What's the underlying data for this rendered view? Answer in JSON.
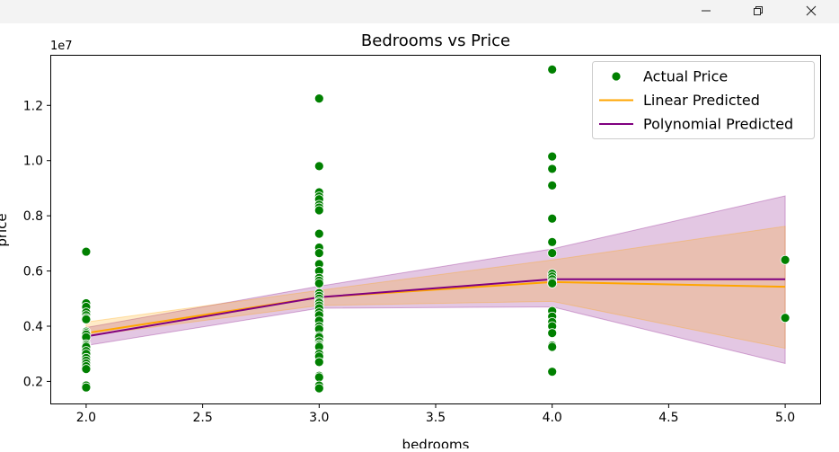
{
  "window": {
    "icons": {
      "minimize": "minimize-icon",
      "maximize": "restore-icon",
      "close": "close-icon"
    }
  },
  "chart_data": {
    "type": "scatter",
    "title": "Bedrooms vs Price",
    "xlabel": "bedrooms",
    "ylabel": "price",
    "y_offset_label": "1e7",
    "xlim": [
      1.85,
      5.15
    ],
    "ylim": [
      0.12,
      1.38
    ],
    "x_ticks": [
      2.0,
      2.5,
      3.0,
      3.5,
      4.0,
      4.5,
      5.0
    ],
    "x_tick_labels": [
      "2.0",
      "2.5",
      "3.0",
      "3.5",
      "4.0",
      "4.5",
      "5.0"
    ],
    "y_ticks": [
      0.2,
      0.4,
      0.6,
      0.8,
      1.0,
      1.2
    ],
    "y_tick_labels": [
      "0.2",
      "0.4",
      "0.6",
      "0.8",
      "1.0",
      "1.2"
    ],
    "grid": false,
    "legend_position": "top-right",
    "colors": {
      "actual": "#008000",
      "linear": "#ffa500",
      "polynomial": "#800080"
    },
    "series": [
      {
        "name": "Actual Price",
        "kind": "scatter",
        "points": [
          [
            2,
            0.67
          ],
          [
            2,
            0.483
          ],
          [
            2,
            0.47
          ],
          [
            2,
            0.45
          ],
          [
            2,
            0.44
          ],
          [
            2,
            0.43
          ],
          [
            2,
            0.425
          ],
          [
            2,
            0.38
          ],
          [
            2,
            0.375
          ],
          [
            2,
            0.37
          ],
          [
            2,
            0.36
          ],
          [
            2,
            0.335
          ],
          [
            2,
            0.33
          ],
          [
            2,
            0.325
          ],
          [
            2,
            0.31
          ],
          [
            2,
            0.3
          ],
          [
            2,
            0.285
          ],
          [
            2,
            0.275
          ],
          [
            2,
            0.265
          ],
          [
            2,
            0.255
          ],
          [
            2,
            0.245
          ],
          [
            2,
            0.185
          ],
          [
            2,
            0.178
          ],
          [
            3,
            1.225
          ],
          [
            3,
            0.98
          ],
          [
            3,
            0.885
          ],
          [
            3,
            0.87
          ],
          [
            3,
            0.86
          ],
          [
            3,
            0.84
          ],
          [
            3,
            0.83
          ],
          [
            3,
            0.82
          ],
          [
            3,
            0.735
          ],
          [
            3,
            0.685
          ],
          [
            3,
            0.665
          ],
          [
            3,
            0.625
          ],
          [
            3,
            0.6
          ],
          [
            3,
            0.575
          ],
          [
            3,
            0.565
          ],
          [
            3,
            0.555
          ],
          [
            3,
            0.52
          ],
          [
            3,
            0.51
          ],
          [
            3,
            0.5
          ],
          [
            3,
            0.49
          ],
          [
            3,
            0.485
          ],
          [
            3,
            0.475
          ],
          [
            3,
            0.465
          ],
          [
            3,
            0.45
          ],
          [
            3,
            0.44
          ],
          [
            3,
            0.42
          ],
          [
            3,
            0.4
          ],
          [
            3,
            0.39
          ],
          [
            3,
            0.365
          ],
          [
            3,
            0.36
          ],
          [
            3,
            0.345
          ],
          [
            3,
            0.335
          ],
          [
            3,
            0.33
          ],
          [
            3,
            0.325
          ],
          [
            3,
            0.3
          ],
          [
            3,
            0.29
          ],
          [
            3,
            0.27
          ],
          [
            3,
            0.22
          ],
          [
            3,
            0.215
          ],
          [
            3,
            0.185
          ],
          [
            3,
            0.175
          ],
          [
            4,
            1.33
          ],
          [
            4,
            1.015
          ],
          [
            4,
            0.97
          ],
          [
            4,
            0.91
          ],
          [
            4,
            0.79
          ],
          [
            4,
            0.705
          ],
          [
            4,
            0.665
          ],
          [
            4,
            0.59
          ],
          [
            4,
            0.58
          ],
          [
            4,
            0.57
          ],
          [
            4,
            0.56
          ],
          [
            4,
            0.555
          ],
          [
            4,
            0.455
          ],
          [
            4,
            0.435
          ],
          [
            4,
            0.415
          ],
          [
            4,
            0.4
          ],
          [
            4,
            0.375
          ],
          [
            4,
            0.33
          ],
          [
            4,
            0.325
          ],
          [
            4,
            0.235
          ],
          [
            5,
            0.64
          ],
          [
            5,
            0.43
          ]
        ]
      },
      {
        "name": "Linear Predicted",
        "kind": "line",
        "x": [
          2,
          3,
          4,
          5
        ],
        "y": [
          0.375,
          0.505,
          0.56,
          0.543
        ],
        "band_low": [
          0.365,
          0.475,
          0.49,
          0.32
        ],
        "band_high": [
          0.415,
          0.53,
          0.64,
          0.762
        ]
      },
      {
        "name": "Polynomial Predicted",
        "kind": "line",
        "x": [
          2,
          3,
          4,
          5
        ],
        "y": [
          0.363,
          0.505,
          0.57,
          0.57
        ],
        "band_low": [
          0.33,
          0.465,
          0.47,
          0.265
        ],
        "band_high": [
          0.395,
          0.545,
          0.68,
          0.872
        ]
      }
    ]
  }
}
